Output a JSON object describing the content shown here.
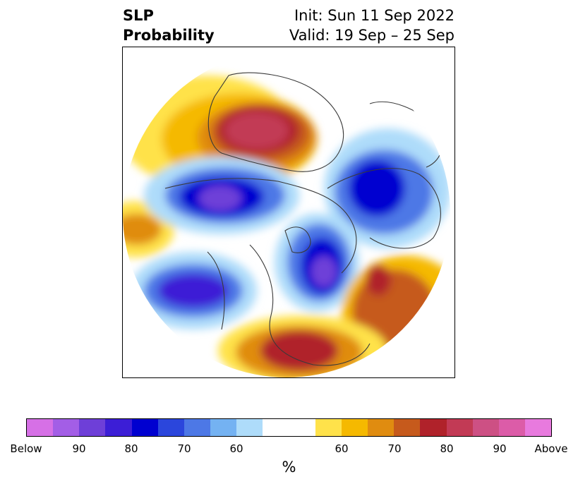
{
  "title": {
    "left_line1": "SLP",
    "left_line2": "Probability",
    "right_line1": "Init: Sun 11 Sep 2022",
    "right_line2": "Valid: 19 Sep – 25 Sep"
  },
  "colorbar": {
    "units": "%",
    "colors": [
      "#d670e6",
      "#a35ee6",
      "#6e3fd8",
      "#3c1ed6",
      "#0000d0",
      "#2b46dc",
      "#4d78e6",
      "#74b2f2",
      "#aedcfa",
      "#ffffff",
      "#ffffff",
      "#ffe24a",
      "#f5b900",
      "#e08c10",
      "#c65a1c",
      "#b0222a",
      "#c23a55",
      "#cd5084",
      "#dc5ca8",
      "#e87ade"
    ],
    "tick_labels": [
      "Below",
      "90",
      "80",
      "70",
      "60",
      "60",
      "70",
      "80",
      "90",
      "Above"
    ]
  },
  "map": {
    "colors": {
      "coast": "#3a3a3a",
      "above_60": "#ffe24a",
      "above_65": "#f5b900",
      "above_70": "#e08c10",
      "above_75": "#c65a1c",
      "above_80": "#b0222a",
      "above_85": "#c23a55",
      "above_90": "#cd5084",
      "below_60": "#aedcfa",
      "below_65": "#74b2f2",
      "below_70": "#4d78e6",
      "below_75": "#2b46dc",
      "below_80": "#0000d0",
      "below_85": "#3c1ed6",
      "below_90": "#6e3fd8",
      "below_95": "#a35ee6"
    }
  }
}
